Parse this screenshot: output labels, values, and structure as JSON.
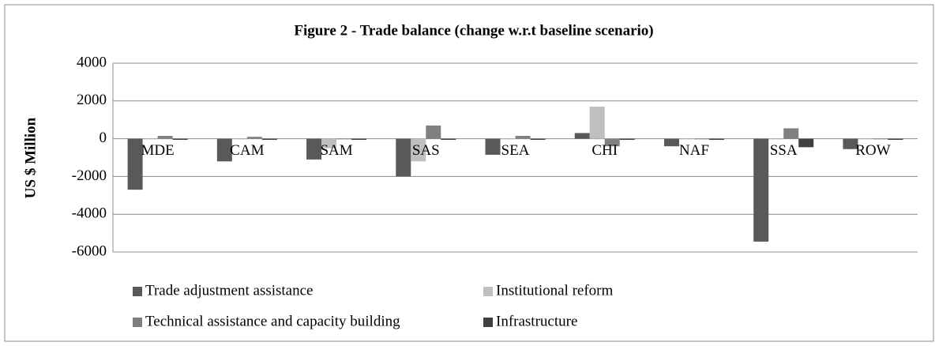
{
  "chart_data": {
    "type": "bar",
    "title": "Figure 2 - Trade balance (change w.r.t baseline scenario)",
    "y_label": "US $ Million",
    "categories": [
      "MDE",
      "CAM",
      "SAM",
      "SAS",
      "SEA",
      "CHI",
      "NAF",
      "SSA",
      "ROW"
    ],
    "series": [
      {
        "name": "Trade adjustment assistance",
        "color": "#595959",
        "values": [
          -2700,
          -1200,
          -1100,
          -2000,
          -850,
          300,
          -400,
          -5450,
          -550
        ]
      },
      {
        "name": "Institutional reform",
        "color": "#bfbfbf",
        "values": [
          -30,
          -30,
          -500,
          -1200,
          -30,
          1700,
          -30,
          -30,
          -30
        ]
      },
      {
        "name": "Technical assistance and capacity building",
        "color": "#808080",
        "values": [
          150,
          100,
          -30,
          700,
          150,
          -400,
          -30,
          550,
          -30
        ]
      },
      {
        "name": "Infrastructure",
        "color": "#404040",
        "values": [
          -60,
          -60,
          -60,
          -60,
          -60,
          -60,
          -60,
          -450,
          -60
        ]
      }
    ],
    "ylim": [
      -6000,
      4000
    ],
    "yticks": [
      -6000,
      -4000,
      -2000,
      0,
      2000,
      4000
    ],
    "grid": true
  }
}
